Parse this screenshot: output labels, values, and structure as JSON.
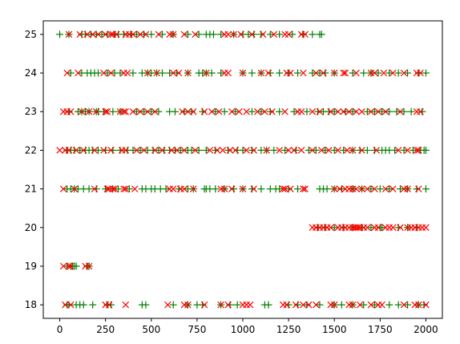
{
  "colors": {
    "plus_series": "#008000",
    "x_series": "#ff0000",
    "axes": "#000000",
    "background": "#ffffff"
  },
  "chart_data": {
    "type": "scatter",
    "title": "",
    "xlabel": "",
    "ylabel": "",
    "xlim": [
      -90,
      2090
    ],
    "ylim": [
      17.65,
      25.35
    ],
    "grid": false,
    "legend": "none",
    "x_ticks": [
      0,
      250,
      500,
      750,
      1000,
      1250,
      1500,
      1750,
      2000
    ],
    "y_ticks": [
      18,
      19,
      20,
      21,
      22,
      23,
      24,
      25
    ],
    "series": [
      {
        "marker": "plus",
        "color": "#008000",
        "points": [
          {
            "y": 25,
            "x": [
              0,
              50,
              120,
              140,
              170,
              200,
              230,
              260,
              300,
              320,
              350,
              390,
              420,
              460,
              500,
              560,
              620,
              700,
              760,
              800,
              820,
              840,
              880,
              950,
              1000,
              1030,
              1060,
              1100,
              1150,
              1200,
              1270,
              1330,
              1380,
              1420,
              1430
            ]
          },
          {
            "y": 24,
            "x": [
              60,
              120,
              150,
              170,
              190,
              210,
              260,
              300,
              330,
              400,
              450,
              480,
              500,
              530,
              560,
              600,
              640,
              700,
              760,
              780,
              800,
              830,
              880,
              1000,
              1050,
              1100,
              1150,
              1200,
              1250,
              1300,
              1380,
              1420,
              1450,
              1500,
              1600,
              1660,
              1700,
              1740,
              1800,
              1850,
              1900,
              1960,
              2000
            ]
          },
          {
            "y": 23,
            "x": [
              50,
              100,
              120,
              140,
              160,
              200,
              210,
              240,
              290,
              330,
              420,
              460,
              500,
              540,
              600,
              630,
              680,
              720,
              780,
              850,
              900,
              960,
              1050,
              1100,
              1150,
              1200,
              1280,
              1350,
              1410,
              1440,
              1470,
              1500,
              1560,
              1600,
              1680,
              1720,
              1760,
              1800,
              1840,
              1880,
              1920,
              1980
            ]
          },
          {
            "y": 22,
            "x": [
              40,
              60,
              80,
              110,
              140,
              160,
              180,
              210,
              250,
              290,
              330,
              370,
              400,
              440,
              480,
              510,
              540,
              570,
              600,
              630,
              660,
              700,
              720,
              760,
              800,
              850,
              920,
              970,
              1000,
              1050,
              1100,
              1130,
              1170,
              1230,
              1290,
              1360,
              1400,
              1450,
              1500,
              1550,
              1600,
              1640,
              1680,
              1720,
              1760,
              1780,
              1800,
              1830,
              1880,
              1930,
              1970,
              1990,
              2000
            ]
          },
          {
            "y": 21,
            "x": [
              40,
              60,
              80,
              100,
              130,
              160,
              200,
              250,
              290,
              320,
              380,
              450,
              470,
              500,
              520,
              550,
              580,
              650,
              700,
              730,
              790,
              800,
              820,
              850,
              900,
              950,
              1000,
              1050,
              1100,
              1150,
              1180,
              1200,
              1250,
              1300,
              1420,
              1440,
              1460,
              1500,
              1540,
              1600,
              1650,
              1700,
              1750,
              1800,
              1860,
              1900,
              1950,
              2000
            ]
          },
          {
            "y": 20,
            "x": [
              1410,
              1450,
              1500,
              1550,
              1600,
              1650,
              1700,
              1750,
              1760,
              1850,
              1900,
              1950
            ]
          },
          {
            "y": 19,
            "x": [
              40,
              60,
              70,
              80,
              90,
              150,
              160
            ]
          },
          {
            "y": 18,
            "x": [
              40,
              50,
              90,
              110,
              130,
              180,
              260,
              280,
              450,
              470,
              620,
              700,
              750,
              780,
              880,
              930,
              970,
              1120,
              1140,
              1250,
              1300,
              1350,
              1420,
              1500,
              1540,
              1600,
              1660,
              1720,
              1800,
              1850,
              1900,
              1960,
              1990
            ]
          }
        ]
      },
      {
        "marker": "x",
        "color": "#ff0000",
        "points": [
          {
            "y": 25,
            "x": [
              50,
              110,
              150,
              180,
              210,
              250,
              280,
              290,
              310,
              360,
              380,
              400,
              440,
              470,
              540,
              600,
              620,
              680,
              740,
              900,
              920,
              950,
              990,
              1050,
              1110,
              1170,
              1230,
              1250,
              1320,
              1340
            ]
          },
          {
            "y": 24,
            "x": [
              40,
              100,
              240,
              280,
              350,
              370,
              480,
              530,
              620,
              650,
              700,
              800,
              900,
              920,
              1000,
              1100,
              1140,
              1240,
              1260,
              1330,
              1400,
              1440,
              1500,
              1550,
              1560,
              1620,
              1700,
              1720,
              1770,
              1820,
              1880,
              1950,
              1970
            ]
          },
          {
            "y": 23,
            "x": [
              20,
              40,
              60,
              120,
              160,
              200,
              250,
              260,
              330,
              350,
              360,
              400,
              440,
              480,
              520,
              670,
              700,
              730,
              790,
              830,
              870,
              940,
              980,
              1020,
              1080,
              1120,
              1160,
              1230,
              1300,
              1320,
              1380,
              1420,
              1480,
              1520,
              1550,
              1580,
              1620,
              1650,
              1700,
              1740,
              1780,
              1860,
              1950,
              1970
            ]
          },
          {
            "y": 22,
            "x": [
              0,
              30,
              50,
              90,
              130,
              190,
              240,
              280,
              340,
              360,
              420,
              460,
              520,
              560,
              610,
              640,
              680,
              740,
              820,
              860,
              890,
              930,
              960,
              1020,
              1060,
              1130,
              1200,
              1250,
              1280,
              1320,
              1380,
              1430,
              1470,
              1520,
              1570,
              1600,
              1650,
              1730,
              1850,
              1900,
              1950,
              1960
            ]
          },
          {
            "y": 21,
            "x": [
              20,
              80,
              190,
              260,
              270,
              290,
              300,
              350,
              360,
              410,
              600,
              620,
              660,
              680,
              730,
              880,
              900,
              940,
              1000,
              1060,
              1220,
              1230,
              1260,
              1330,
              1340,
              1500,
              1530,
              1560,
              1580,
              1600,
              1620,
              1650,
              1680,
              1720,
              1780,
              1820,
              1880,
              1900,
              1960
            ]
          },
          {
            "y": 20,
            "x": [
              1380,
              1400,
              1420,
              1440,
              1460,
              1480,
              1520,
              1540,
              1560,
              1580,
              1600,
              1610,
              1620,
              1630,
              1640,
              1660,
              1680,
              1720,
              1740,
              1780,
              1800,
              1820,
              1860,
              1900,
              1920,
              1940,
              1960,
              1980,
              2000
            ]
          },
          {
            "y": 19,
            "x": [
              20,
              50,
              60,
              140,
              160
            ]
          },
          {
            "y": 18,
            "x": [
              30,
              60,
              250,
              270,
              360,
              590,
              680,
              700,
              790,
              880,
              920,
              1000,
              1020,
              1040,
              1220,
              1240,
              1290,
              1330,
              1360,
              1400,
              1480,
              1500,
              1580,
              1600,
              1640,
              1700,
              1740,
              1760,
              1880,
              1940,
              1960,
              2000
            ]
          }
        ]
      }
    ]
  }
}
